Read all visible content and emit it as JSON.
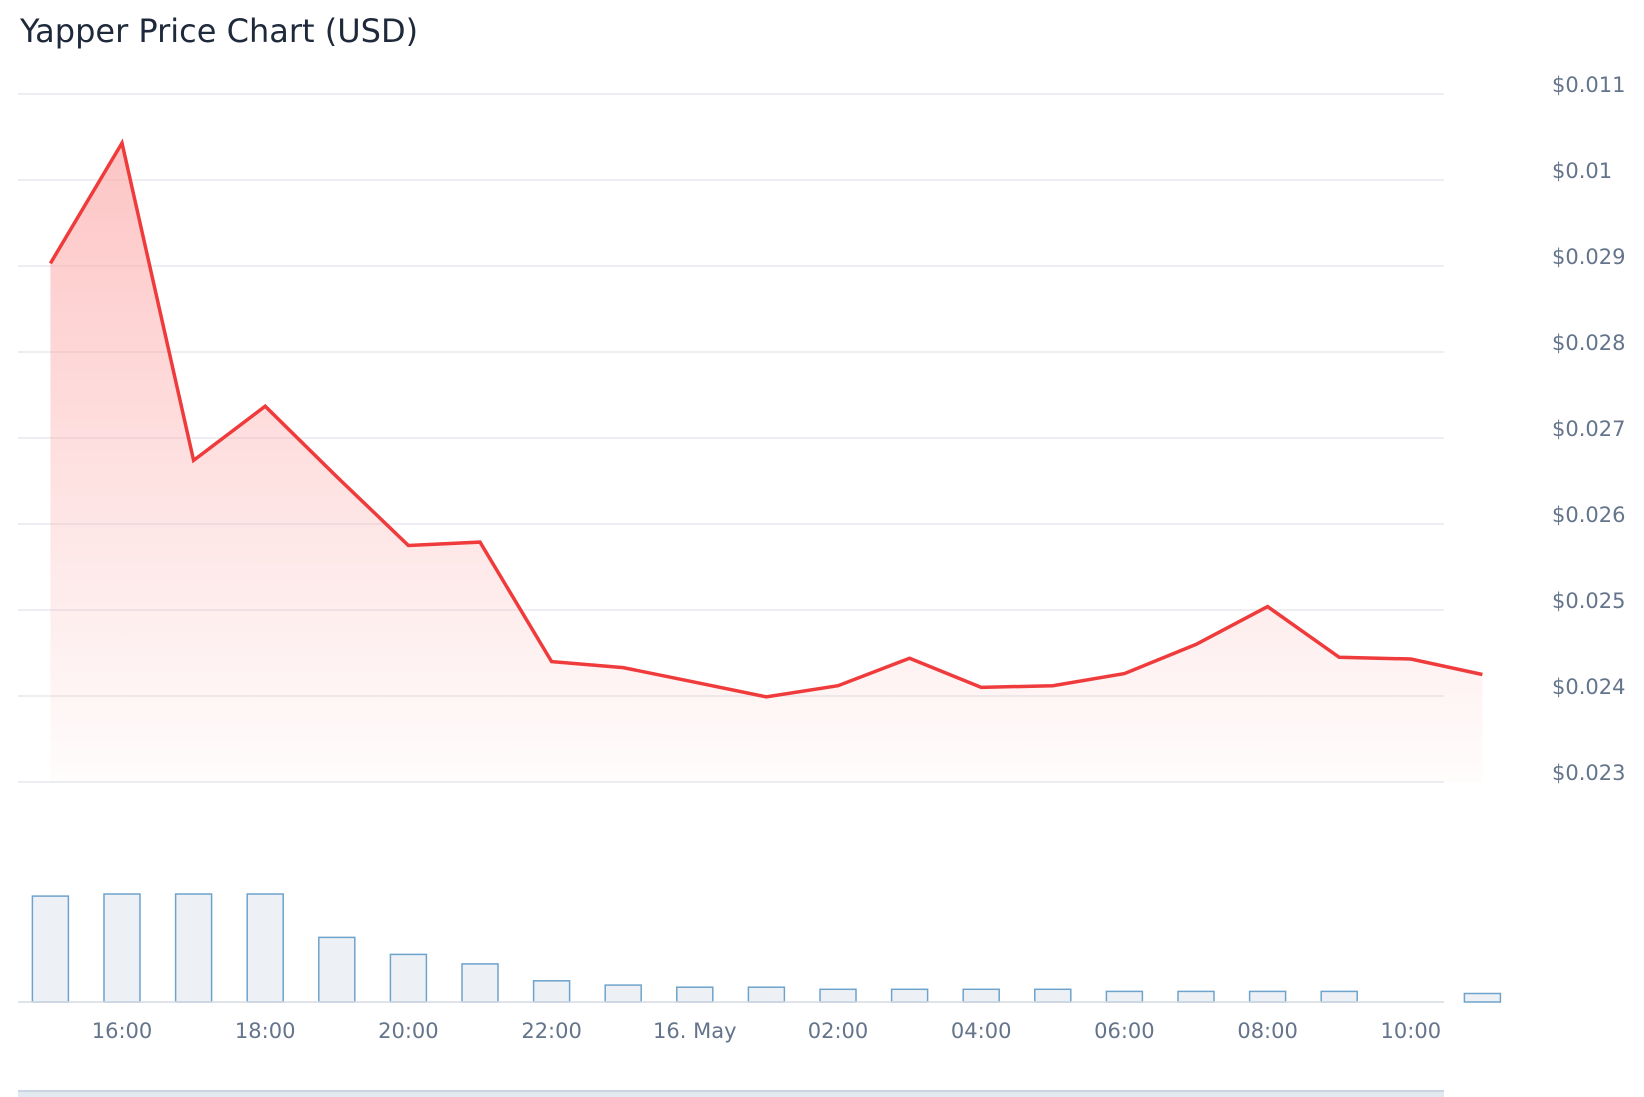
{
  "chart_data": {
    "type": "line",
    "title": "Yapper Price Chart (USD)",
    "xlabel": "",
    "ylabel": "",
    "y_tick_labels": [
      "$0.011",
      "$0.01",
      "$0.029",
      "$0.028",
      "$0.027",
      "$0.026",
      "$0.025",
      "$0.024",
      "$0.023"
    ],
    "x_tick_labels": [
      {
        "label": "16:00",
        "hour": 16
      },
      {
        "label": "18:00",
        "hour": 18
      },
      {
        "label": "20:00",
        "hour": 20
      },
      {
        "label": "22:00",
        "hour": 22
      },
      {
        "label": "16. May",
        "hour": 24
      },
      {
        "label": "02:00",
        "hour": 26
      },
      {
        "label": "04:00",
        "hour": 28
      },
      {
        "label": "06:00",
        "hour": 30
      },
      {
        "label": "08:00",
        "hour": 32
      },
      {
        "label": "10:00",
        "hour": 34
      }
    ],
    "ylim": [
      0.023,
      0.031
    ],
    "grid": true,
    "series": [
      {
        "type": "area",
        "hours": [
          15,
          16,
          17,
          18,
          19,
          20,
          21,
          22,
          23,
          24,
          25,
          26,
          27,
          28,
          29,
          30,
          31,
          32,
          33,
          34,
          35
        ],
        "values": [
          0.02903,
          0.03043,
          0.02674,
          0.02737,
          0.02655,
          0.02575,
          0.02579,
          0.0244,
          0.02433,
          0.02416,
          0.02399,
          0.02412,
          0.02444,
          0.0241,
          0.02412,
          0.02426,
          0.0246,
          0.02504,
          0.02445,
          0.02443,
          0.02425
        ],
        "color": "#ef3b3b"
      },
      {
        "type": "bar",
        "hours": [
          15,
          16,
          17,
          18,
          19,
          20,
          21,
          22,
          23,
          24,
          25,
          26,
          27,
          28,
          29,
          30,
          31,
          32,
          33,
          34,
          35
        ],
        "values": [
          100,
          102,
          102,
          102,
          61,
          45,
          36,
          20,
          16,
          14,
          14,
          12,
          12,
          12,
          12,
          10,
          10,
          10,
          10,
          0,
          8
        ],
        "color": "#6ea3cc"
      }
    ]
  }
}
